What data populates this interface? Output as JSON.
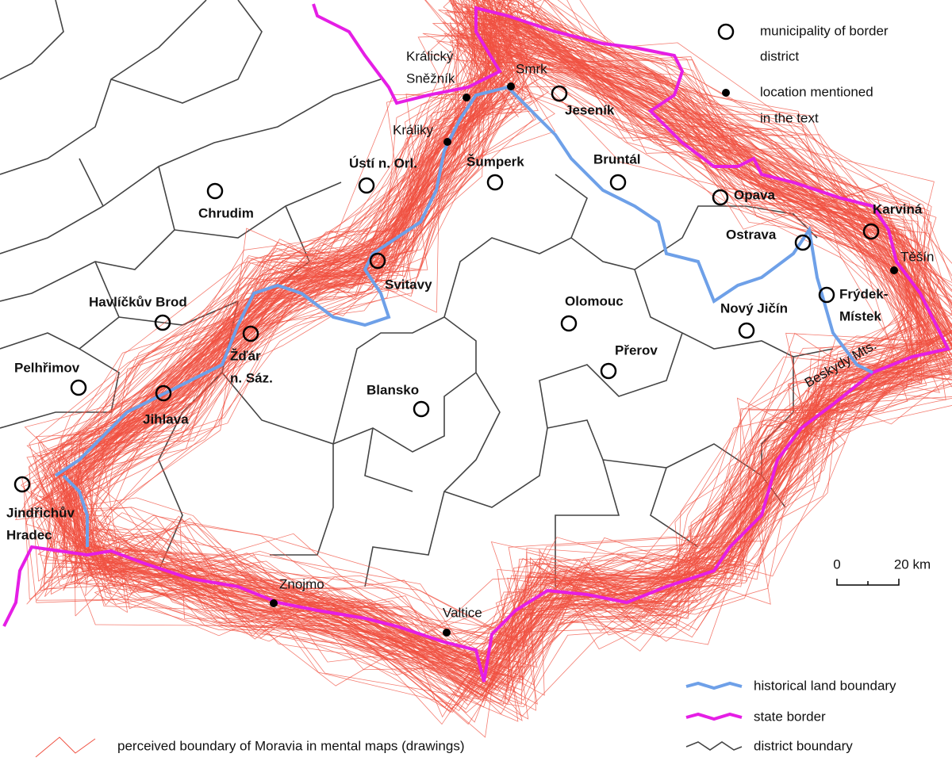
{
  "map": {
    "municipalities": [
      {
        "lines": [
          "Jeseník"
        ]
      },
      {
        "lines": [
          "Bruntál"
        ]
      },
      {
        "lines": [
          "Šumperk"
        ]
      },
      {
        "lines": [
          "Ústí n. Orl."
        ]
      },
      {
        "lines": [
          "Chrudim"
        ]
      },
      {
        "lines": [
          "Svitavy"
        ]
      },
      {
        "lines": [
          "Opava"
        ]
      },
      {
        "lines": [
          "Karviná"
        ]
      },
      {
        "lines": [
          "Ostrava"
        ]
      },
      {
        "lines": [
          "Frýdek-",
          "Místek"
        ]
      },
      {
        "lines": [
          "Nový Jičín"
        ]
      },
      {
        "lines": [
          "Olomouc"
        ]
      },
      {
        "lines": [
          "Přerov"
        ]
      },
      {
        "lines": [
          "Havlíčkův Brod"
        ]
      },
      {
        "lines": [
          "Žďár",
          "n. Sáz."
        ]
      },
      {
        "lines": [
          "Pelhřimov"
        ]
      },
      {
        "lines": [
          "Jihlava"
        ]
      },
      {
        "lines": [
          "Blansko"
        ]
      },
      {
        "lines": [
          "Jindřichův",
          "Hradec"
        ]
      }
    ],
    "locations": [
      {
        "lines": [
          "Králický",
          "Sněžník"
        ]
      },
      {
        "lines": [
          "Smrk"
        ]
      },
      {
        "lines": [
          "Králiky"
        ]
      },
      {
        "lines": [
          "Těšín"
        ]
      },
      {
        "lines": [
          "Znojmo"
        ]
      },
      {
        "lines": [
          "Valtice"
        ]
      }
    ],
    "range_label": "Beskydy Mts.",
    "legend": {
      "municipality": [
        "municipality of border",
        "district"
      ],
      "location": [
        "location mentioned",
        "in the text"
      ],
      "historical": "historical land boundary",
      "state": "state border",
      "district": "district boundary",
      "perceived": "perceived boundary of Moravia in mental maps (drawings)"
    },
    "scale": {
      "start": "0",
      "end": "20 km"
    }
  }
}
